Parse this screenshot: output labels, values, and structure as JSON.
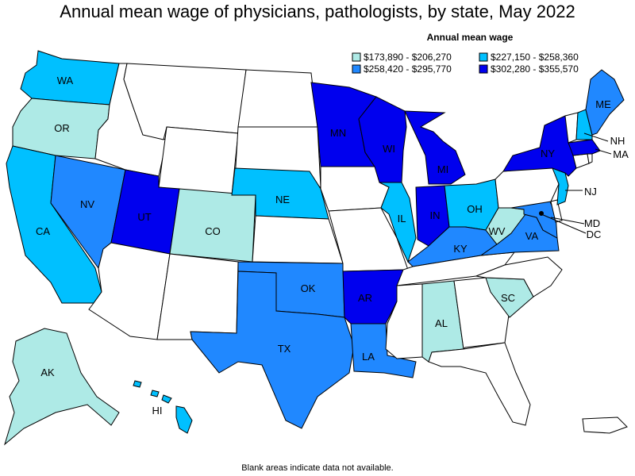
{
  "title": "Annual mean wage of physicians, pathologists, by state, May 2022",
  "legend": {
    "title": "Annual mean wage",
    "items": [
      {
        "label": "$173,890 - $206,270",
        "color": "#aeeae6"
      },
      {
        "label": "$227,150 - $258,360",
        "color": "#00c0ff"
      },
      {
        "label": "$258,420 - $295,770",
        "color": "#2088ff"
      },
      {
        "label": "$302,280 - $355,570",
        "color": "#0000ee"
      }
    ]
  },
  "footnote": "Blank areas indicate data not available.",
  "colors": {
    "no_data": "#ffffff",
    "tier1": "#aeeae6",
    "tier2": "#00c0ff",
    "tier3": "#2088ff",
    "tier4": "#0000ee"
  },
  "states": {
    "WA": {
      "label": "WA",
      "tier": 2
    },
    "OR": {
      "label": "OR",
      "tier": 1
    },
    "CA": {
      "label": "CA",
      "tier": 2
    },
    "NV": {
      "label": "NV",
      "tier": 3
    },
    "UT": {
      "label": "UT",
      "tier": 4
    },
    "CO": {
      "label": "CO",
      "tier": 1
    },
    "NE": {
      "label": "NE",
      "tier": 2
    },
    "MN": {
      "label": "MN",
      "tier": 4
    },
    "WI": {
      "label": "WI",
      "tier": 4
    },
    "MI": {
      "label": "MI",
      "tier": 4
    },
    "IL": {
      "label": "IL",
      "tier": 2
    },
    "IN": {
      "label": "IN",
      "tier": 4
    },
    "OH": {
      "label": "OH",
      "tier": 2
    },
    "KY": {
      "label": "KY",
      "tier": 3
    },
    "WV": {
      "label": "WV",
      "tier": 1
    },
    "VA": {
      "label": "VA",
      "tier": 3
    },
    "MD": {
      "label": "MD",
      "tier": 3
    },
    "DC": {
      "label": "DC",
      "tier": 4
    },
    "NJ": {
      "label": "NJ",
      "tier": 2
    },
    "NY": {
      "label": "NY",
      "tier": 4
    },
    "NH": {
      "label": "NH",
      "tier": 2
    },
    "MA": {
      "label": "MA",
      "tier": 4
    },
    "ME": {
      "label": "ME",
      "tier": 3
    },
    "OK": {
      "label": "OK",
      "tier": 3
    },
    "TX": {
      "label": "TX",
      "tier": 3
    },
    "AR": {
      "label": "AR",
      "tier": 4
    },
    "LA": {
      "label": "LA",
      "tier": 3
    },
    "AL": {
      "label": "AL",
      "tier": 1
    },
    "SC": {
      "label": "SC",
      "tier": 1
    },
    "AK": {
      "label": "AK",
      "tier": 1
    },
    "HI": {
      "label": "HI",
      "tier": 2
    },
    "ID": {
      "tier": 0
    },
    "MT": {
      "tier": 0
    },
    "WY": {
      "tier": 0
    },
    "ND": {
      "tier": 0
    },
    "SD": {
      "tier": 0
    },
    "KS": {
      "tier": 0
    },
    "IA": {
      "tier": 0
    },
    "MO": {
      "tier": 0
    },
    "AZ": {
      "tier": 0
    },
    "NM": {
      "tier": 0
    },
    "MS": {
      "tier": 0
    },
    "TN": {
      "tier": 0
    },
    "GA": {
      "tier": 0
    },
    "FL": {
      "tier": 0
    },
    "NC": {
      "tier": 0
    },
    "PA": {
      "tier": 0
    },
    "VT": {
      "tier": 0
    },
    "CT": {
      "tier": 0
    },
    "RI": {
      "tier": 0
    },
    "DE": {
      "tier": 0
    },
    "PR": {
      "tier": 0
    }
  }
}
